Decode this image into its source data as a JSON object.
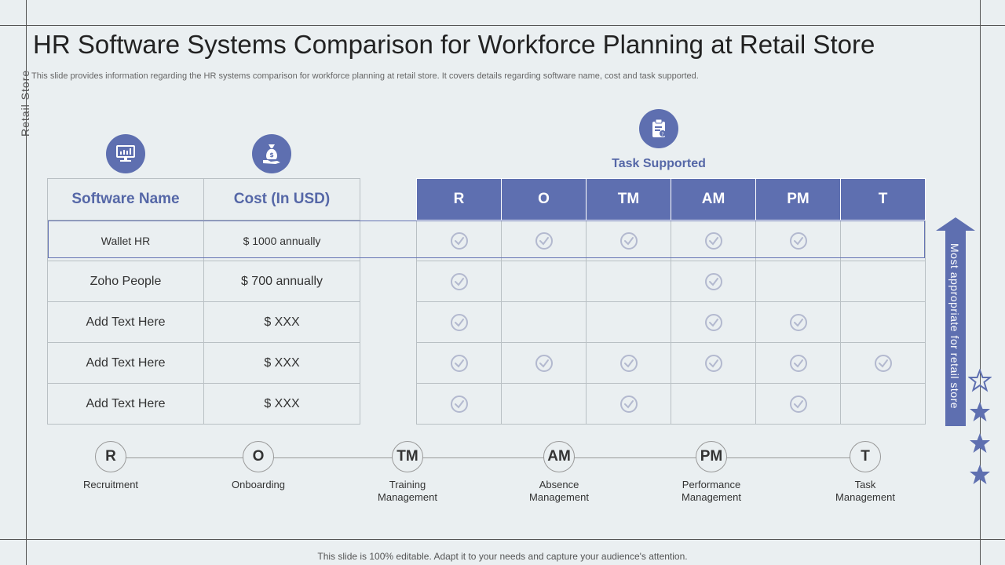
{
  "side_label": "Retail Store",
  "title": "HR Software Systems Comparison for Workforce Planning at Retail Store",
  "subtitle": "This slide provides information regarding the HR systems comparison for workforce planning at retail store. It covers details regarding software name, cost and task supported.",
  "icons": {
    "software": "monitor-icon",
    "cost": "money-bag-icon",
    "task": "clipboard-icon",
    "check": "check-circle-icon",
    "star": "star-icon"
  },
  "left_table": {
    "headers": [
      "Software Name",
      "Cost (In USD)"
    ],
    "rows": [
      {
        "name": "Wallet HR",
        "cost": "$ 1000 annually"
      },
      {
        "name": "Zoho People",
        "cost": "$ 700 annually"
      },
      {
        "name": "Add Text Here",
        "cost": "$ XXX"
      },
      {
        "name": "Add Text Here",
        "cost": "$ XXX"
      },
      {
        "name": "Add Text Here",
        "cost": "$ XXX"
      }
    ]
  },
  "task_table": {
    "heading": "Task Supported",
    "headers": [
      "R",
      "O",
      "TM",
      "AM",
      "PM",
      "T"
    ],
    "checks": [
      [
        true,
        true,
        true,
        true,
        true,
        false
      ],
      [
        true,
        false,
        false,
        true,
        false,
        false
      ],
      [
        true,
        false,
        false,
        true,
        true,
        false
      ],
      [
        true,
        true,
        true,
        true,
        true,
        true
      ],
      [
        true,
        false,
        true,
        false,
        true,
        false
      ]
    ]
  },
  "arrow_label": "Most appropriate for retail store",
  "legend": [
    {
      "abbr": "R",
      "label": "Recruitment"
    },
    {
      "abbr": "O",
      "label": "Onboarding"
    },
    {
      "abbr": "TM",
      "label": "Training Management"
    },
    {
      "abbr": "AM",
      "label": "Absence Management"
    },
    {
      "abbr": "PM",
      "label": "Performance Management"
    },
    {
      "abbr": "T",
      "label": "Task Management"
    }
  ],
  "footer": "This slide is 100% editable. Adapt it to your needs and capture your audience's attention.",
  "colors": {
    "accent": "#5e6fb0",
    "heading": "#5567a7",
    "background": "#eaeff1"
  }
}
